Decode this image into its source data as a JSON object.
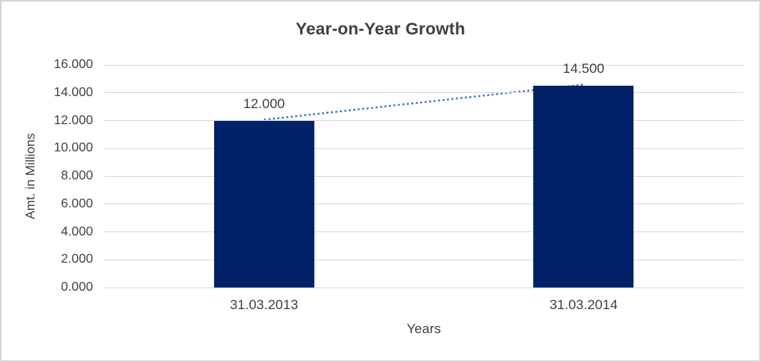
{
  "chart_data": {
    "type": "bar",
    "title": "Year-on-Year Growth",
    "xlabel": "Years",
    "ylabel": "Amt. in Millions",
    "categories": [
      "31.03.2013",
      "31.03.2014"
    ],
    "values": [
      12.0,
      14.5
    ],
    "value_labels": [
      "12.000",
      "14.500"
    ],
    "ylim": [
      0,
      16
    ],
    "ytick_step": 2,
    "ytick_labels": [
      "0.000",
      "2.000",
      "4.000",
      "6.000",
      "8.000",
      "10.000",
      "12.000",
      "14.000",
      "16.000"
    ],
    "grid": "horizontal-only",
    "legend": "none",
    "trendline": {
      "style": "dotted",
      "from": {
        "category": "31.03.2013",
        "value": 12.0
      },
      "to": {
        "category": "31.03.2014",
        "value": 14.5
      }
    },
    "colors": {
      "bar": "#012169",
      "trendline": "#4472C4",
      "gridline": "#D9D9D9",
      "text": "#404040",
      "title": "#3F3F3F",
      "frame_border": "#D5D5D5",
      "background": "#FFFFFF"
    }
  }
}
